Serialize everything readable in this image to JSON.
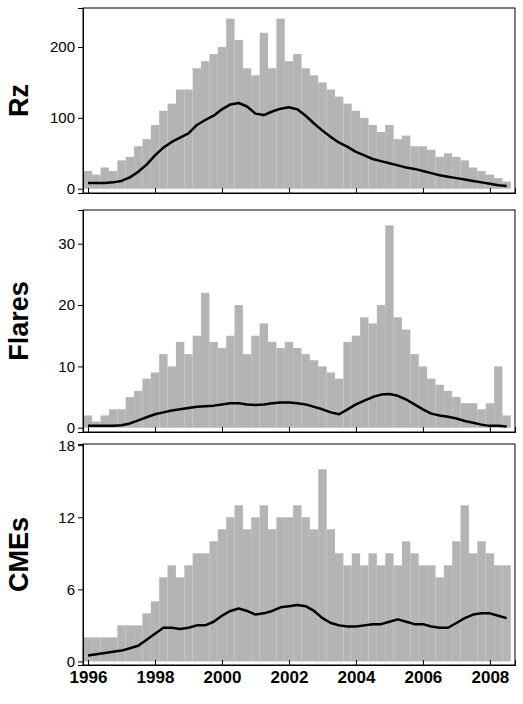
{
  "chart_data": [
    {
      "type": "line",
      "ylabel": "Rz",
      "x": [
        1996,
        1996.25,
        1996.5,
        1996.75,
        1997,
        1997.25,
        1997.5,
        1997.75,
        1998,
        1998.25,
        1998.5,
        1998.75,
        1999,
        1999.25,
        1999.5,
        1999.75,
        2000,
        2000.25,
        2000.5,
        2000.75,
        2001,
        2001.25,
        2001.5,
        2001.75,
        2002,
        2002.25,
        2002.5,
        2002.75,
        2003,
        2003.25,
        2003.5,
        2003.75,
        2004,
        2004.25,
        2004.5,
        2004.75,
        2005,
        2005.25,
        2005.5,
        2005.75,
        2006,
        2006.25,
        2006.5,
        2006.75,
        2007,
        2007.25,
        2007.5,
        2007.75,
        2008,
        2008.25,
        2008.5
      ],
      "xlim": [
        1995.85,
        2008.75
      ],
      "xticks": [
        1996,
        1998,
        2000,
        2002,
        2004,
        2006,
        2008
      ],
      "ylim": [
        -6,
        255
      ],
      "yticks": [
        0,
        100,
        200
      ],
      "tick_labels": "y",
      "series": [
        {
          "type": "bar",
          "color": "#b4b4b4",
          "values": [
            25,
            20,
            30,
            25,
            40,
            45,
            60,
            70,
            90,
            110,
            120,
            140,
            140,
            170,
            180,
            190,
            200,
            240,
            210,
            170,
            160,
            220,
            170,
            240,
            180,
            190,
            170,
            160,
            150,
            140,
            130,
            120,
            110,
            100,
            90,
            80,
            90,
            70,
            75,
            60,
            60,
            55,
            45,
            50,
            45,
            40,
            30,
            25,
            20,
            15,
            10
          ]
        },
        {
          "type": "line",
          "color": "#000000",
          "values": [
            8,
            8,
            8,
            9,
            11,
            16,
            24,
            34,
            47,
            58,
            66,
            72,
            78,
            90,
            97,
            103,
            112,
            119,
            121,
            116,
            106,
            104,
            109,
            113,
            115,
            112,
            103,
            92,
            82,
            73,
            65,
            59,
            52,
            47,
            42,
            39,
            36,
            33,
            30,
            28,
            25,
            22,
            19,
            17,
            15,
            13,
            11,
            9,
            7,
            5,
            4
          ]
        }
      ]
    },
    {
      "type": "line",
      "ylabel": "Flares",
      "x": [
        1996,
        1996.25,
        1996.5,
        1996.75,
        1997,
        1997.25,
        1997.5,
        1997.75,
        1998,
        1998.25,
        1998.5,
        1998.75,
        1999,
        1999.25,
        1999.5,
        1999.75,
        2000,
        2000.25,
        2000.5,
        2000.75,
        2001,
        2001.25,
        2001.5,
        2001.75,
        2002,
        2002.25,
        2002.5,
        2002.75,
        2003,
        2003.25,
        2003.5,
        2003.75,
        2004,
        2004.25,
        2004.5,
        2004.75,
        2005,
        2005.25,
        2005.5,
        2005.75,
        2006,
        2006.25,
        2006.5,
        2006.75,
        2007,
        2007.25,
        2007.5,
        2007.75,
        2008,
        2008.25,
        2008.5
      ],
      "xlim": [
        1995.85,
        2008.75
      ],
      "xticks": [
        1996,
        1998,
        2000,
        2002,
        2004,
        2006,
        2008
      ],
      "ylim": [
        -0.7,
        35.5
      ],
      "yticks": [
        0,
        10,
        20,
        30
      ],
      "tick_labels": "y",
      "series": [
        {
          "type": "bar",
          "color": "#b4b4b4",
          "values": [
            2,
            1,
            2,
            3,
            3,
            5,
            6,
            8,
            9,
            12,
            10,
            14,
            12,
            15,
            22,
            14,
            13,
            15,
            20,
            12,
            15,
            17,
            14,
            13,
            14,
            13,
            12,
            11,
            10,
            9,
            8,
            14,
            15,
            18,
            17,
            20,
            33,
            18,
            16,
            12,
            10,
            8,
            7,
            6,
            5,
            4,
            4,
            3,
            4,
            10,
            2
          ]
        },
        {
          "type": "line",
          "color": "#000000",
          "values": [
            0.3,
            0.3,
            0.3,
            0.3,
            0.4,
            0.7,
            1.2,
            1.7,
            2.2,
            2.5,
            2.8,
            3.0,
            3.2,
            3.4,
            3.5,
            3.6,
            3.8,
            4.0,
            4.0,
            3.8,
            3.7,
            3.8,
            4.0,
            4.1,
            4.1,
            4.0,
            3.8,
            3.4,
            3.0,
            2.5,
            2.2,
            3.0,
            3.8,
            4.4,
            5.0,
            5.4,
            5.5,
            5.2,
            4.6,
            3.8,
            3.0,
            2.3,
            2.0,
            1.8,
            1.5,
            1.1,
            0.8,
            0.5,
            0.3,
            0.3,
            0.2
          ]
        }
      ]
    },
    {
      "type": "line",
      "ylabel": "CMEs",
      "x": [
        1996,
        1996.25,
        1996.5,
        1996.75,
        1997,
        1997.25,
        1997.5,
        1997.75,
        1998,
        1998.25,
        1998.5,
        1998.75,
        1999,
        1999.25,
        1999.5,
        1999.75,
        2000,
        2000.25,
        2000.5,
        2000.75,
        2001,
        2001.25,
        2001.5,
        2001.75,
        2002,
        2002.25,
        2002.5,
        2002.75,
        2003,
        2003.25,
        2003.5,
        2003.75,
        2004,
        2004.25,
        2004.5,
        2004.75,
        2005,
        2005.25,
        2005.5,
        2005.75,
        2006,
        2006.25,
        2006.5,
        2006.75,
        2007,
        2007.25,
        2007.5,
        2007.75,
        2008,
        2008.25,
        2008.5
      ],
      "xlim": [
        1995.85,
        2008.75
      ],
      "xticks": [
        1996,
        1998,
        2000,
        2002,
        2004,
        2006,
        2008
      ],
      "ylim": [
        -0.3,
        18.1
      ],
      "yticks": [
        0,
        6,
        12,
        18
      ],
      "series": [
        {
          "type": "bar",
          "color": "#b4b4b4",
          "values": [
            2,
            2,
            2,
            2,
            3,
            3,
            3,
            4,
            5,
            7,
            8,
            7,
            8,
            9,
            9,
            10,
            11,
            12,
            13,
            11,
            12,
            13,
            11,
            12,
            12,
            13,
            12,
            11,
            16,
            11,
            9,
            8,
            9,
            8,
            9,
            8,
            9,
            8,
            10,
            9,
            8,
            8,
            7,
            8,
            10,
            13,
            9,
            10,
            9,
            8,
            8
          ]
        },
        {
          "type": "line",
          "color": "#000000",
          "values": [
            0.5,
            0.6,
            0.7,
            0.8,
            0.9,
            1.1,
            1.3,
            1.8,
            2.3,
            2.8,
            2.8,
            2.7,
            2.8,
            3.0,
            3.0,
            3.3,
            3.8,
            4.2,
            4.4,
            4.2,
            3.9,
            4.0,
            4.2,
            4.5,
            4.6,
            4.7,
            4.6,
            4.2,
            3.6,
            3.2,
            3.0,
            2.9,
            2.9,
            3.0,
            3.1,
            3.1,
            3.3,
            3.5,
            3.3,
            3.1,
            3.1,
            2.9,
            2.8,
            2.8,
            3.2,
            3.6,
            3.9,
            4.0,
            4.0,
            3.8,
            3.6
          ]
        }
      ]
    }
  ]
}
